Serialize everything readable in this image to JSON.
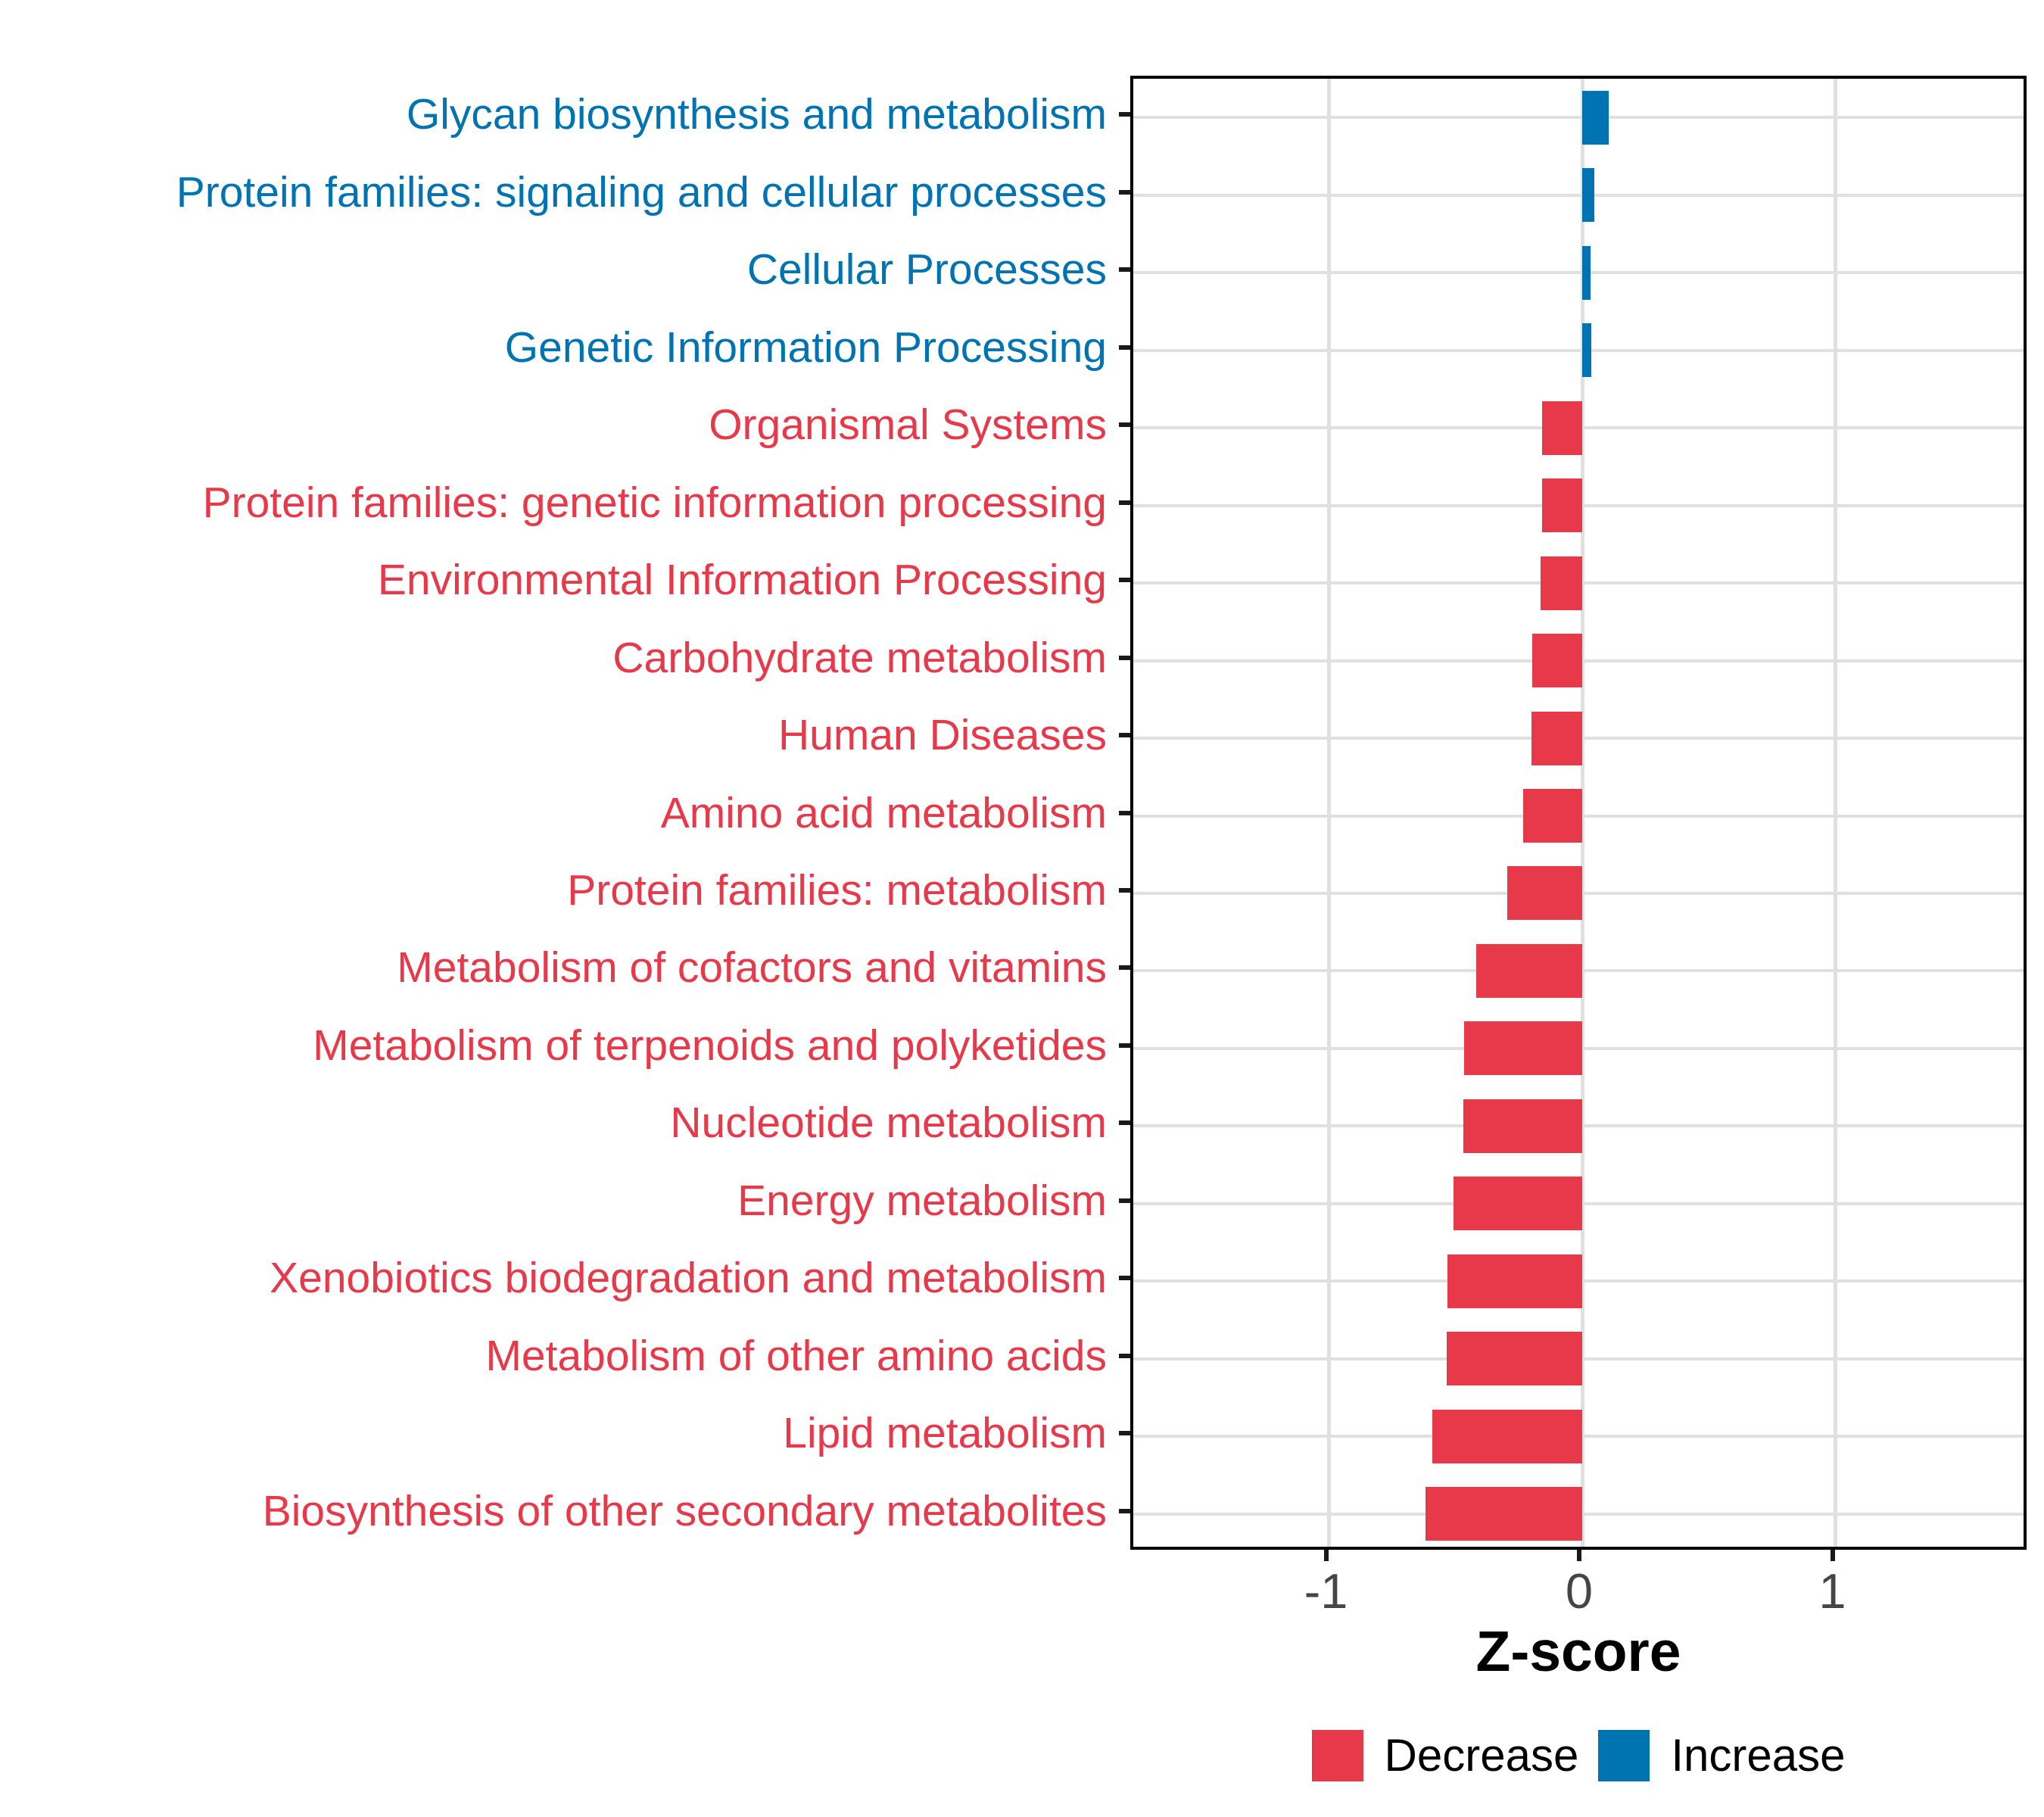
{
  "chart_data": {
    "type": "bar",
    "orientation": "horizontal",
    "title": "",
    "xlabel": "Z-score",
    "ylabel": "",
    "xlim": [
      -1.77,
      1.77
    ],
    "x_ticks": [
      -1,
      0,
      1
    ],
    "x_tick_labels": [
      "-1",
      "0",
      "1"
    ],
    "grid": "major-only",
    "legend_position": "bottom",
    "categories": [
      "Glycan biosynthesis and metabolism",
      "Protein families: signaling and cellular processes",
      "Cellular Processes",
      "Genetic Information Processing",
      "Organismal Systems",
      "Protein families: genetic information processing",
      "Environmental Information Processing",
      "Carbohydrate metabolism",
      "Human Diseases",
      "Amino acid metabolism",
      "Protein families: metabolism",
      "Metabolism of cofactors and vitamins",
      "Metabolism of terpenoids and polyketides",
      "Nucleotide metabolism",
      "Energy metabolism",
      "Xenobiotics biodegradation and metabolism",
      "Metabolism of other amino acids",
      "Lipid metabolism",
      "Biosynthesis of other secondary metabolites"
    ],
    "values": [
      0.105,
      0.048,
      0.034,
      0.036,
      -0.157,
      -0.158,
      -0.164,
      -0.197,
      -0.2,
      -0.233,
      -0.296,
      -0.42,
      -0.465,
      -0.47,
      -0.508,
      -0.532,
      -0.535,
      -0.592,
      -0.619
    ],
    "directions": [
      "Increase",
      "Increase",
      "Increase",
      "Increase",
      "Decrease",
      "Decrease",
      "Decrease",
      "Decrease",
      "Decrease",
      "Decrease",
      "Decrease",
      "Decrease",
      "Decrease",
      "Decrease",
      "Decrease",
      "Decrease",
      "Decrease",
      "Decrease",
      "Decrease"
    ],
    "legend": [
      {
        "label": "Decrease",
        "color": "#E8394A"
      },
      {
        "label": "Increase",
        "color": "#0073B2"
      }
    ],
    "colors": {
      "decrease": "#E8394A",
      "increase": "#0073B2",
      "gridline": "#E0E0E0",
      "axis_text": "#454545",
      "panel_border": "#000000"
    }
  }
}
